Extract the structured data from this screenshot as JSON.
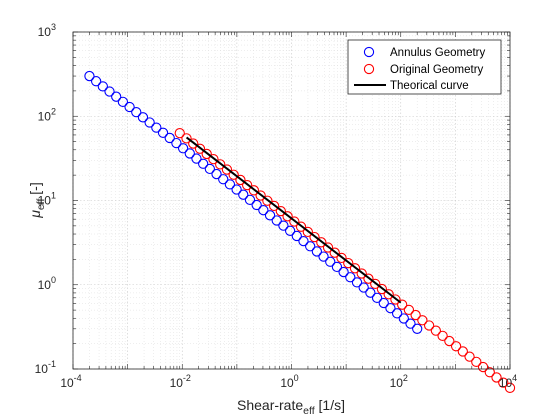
{
  "chart_data": {
    "type": "scatter",
    "x_scale": "log",
    "y_scale": "log",
    "xlim": [
      0.0001,
      10000
    ],
    "ylim": [
      0.1,
      1000
    ],
    "grid": true,
    "minor_grid": true,
    "legend_position": "top-right",
    "xlabel": {
      "main": "Shear-rate",
      "sub": "eff",
      "unit": " [1/s]"
    },
    "ylabel": {
      "main": "μ",
      "sub": "eff",
      "unit": " [-]"
    },
    "x_ticks": [
      {
        "value": 0.0001,
        "base": "10",
        "exp": "-4"
      },
      {
        "value": 0.01,
        "base": "10",
        "exp": "-2"
      },
      {
        "value": 1,
        "base": "10",
        "exp": "0"
      },
      {
        "value": 100,
        "base": "10",
        "exp": "2"
      },
      {
        "value": 10000,
        "base": "10",
        "exp": "4"
      }
    ],
    "y_ticks": [
      {
        "value": 0.1,
        "base": "10",
        "exp": "-1"
      },
      {
        "value": 1,
        "base": "10",
        "exp": "0"
      },
      {
        "value": 10,
        "base": "10",
        "exp": "1"
      },
      {
        "value": 100,
        "base": "10",
        "exp": "2"
      },
      {
        "value": 1000,
        "base": "10",
        "exp": "3"
      }
    ],
    "series": [
      {
        "name": "Annulus Geometry",
        "marker": "circle",
        "color": "#0000ff",
        "x_range": [
          0.0002,
          200
        ],
        "points": 50,
        "y_at_x_min": 300,
        "power_law_exponent": -0.5
      },
      {
        "name": "Original Geometry",
        "marker": "circle",
        "color": "#ff0000",
        "x_range": [
          0.009,
          10000
        ],
        "points": 50,
        "y_at_x_min": 63,
        "power_law_exponent": -0.5
      },
      {
        "name": "Theorical curve",
        "marker": "line",
        "color": "#000000",
        "x_range": [
          0.012,
          100
        ],
        "y_at_x_min": 56,
        "power_law_exponent": -0.5
      }
    ]
  }
}
